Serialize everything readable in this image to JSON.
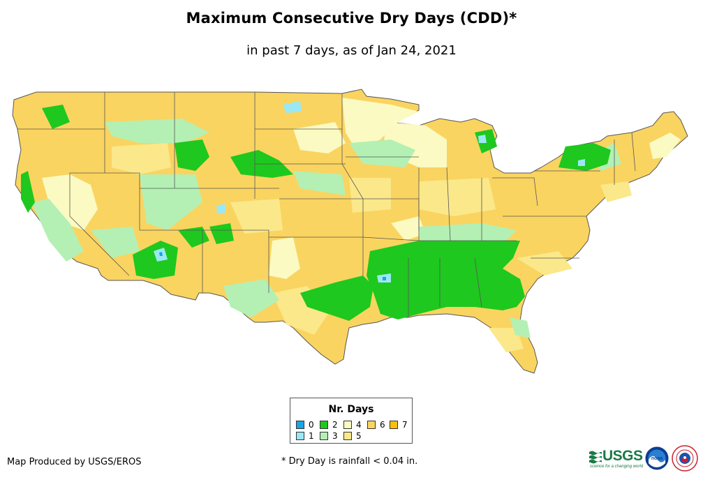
{
  "header": {
    "title": "Maximum Consecutive Dry Days (CDD)*",
    "subtitle": "in past 7 days, as of Jan 24, 2021"
  },
  "legend": {
    "title": "Nr. Days",
    "items": [
      {
        "label": "0",
        "color": "#1aa5e6"
      },
      {
        "label": "1",
        "color": "#9be8f5"
      },
      {
        "label": "2",
        "color": "#1ec81e"
      },
      {
        "label": "3",
        "color": "#b4f0b4"
      },
      {
        "label": "4",
        "color": "#fafac2"
      },
      {
        "label": "5",
        "color": "#fae88a"
      },
      {
        "label": "6",
        "color": "#fad460"
      },
      {
        "label": "7",
        "color": "#fac00a"
      }
    ]
  },
  "footer": {
    "credit": "Map Produced by USGS/EROS",
    "footnote": "* Dry Day is rainfall < 0.04 in."
  },
  "logos": {
    "usgs": "USGS",
    "usgs_tagline": "science for a changing world",
    "noaa": "noaa"
  }
}
